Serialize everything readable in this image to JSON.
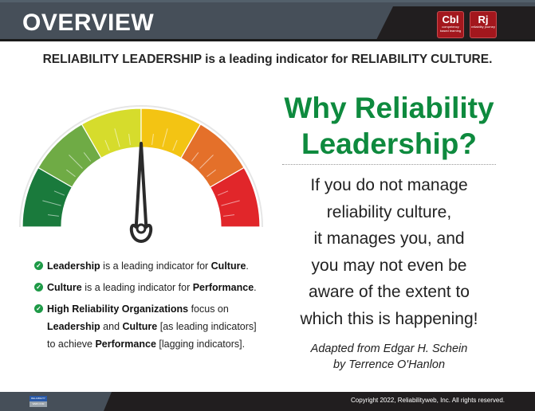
{
  "header": {
    "title": "OVERVIEW",
    "badges": [
      {
        "big": "Cbl",
        "small": "competency based learning"
      },
      {
        "big": "Rj",
        "small": "reliability journey"
      }
    ]
  },
  "subtitle": "RELIABILITY LEADERSHIP is a leading indicator for RELIABILITY CULTURE.",
  "gauge": {
    "needle_value": 0.5,
    "segment_colors": [
      "#1a7a3c",
      "#6fab45",
      "#d6dc2c",
      "#f3c413",
      "#e4702a",
      "#e1262a"
    ],
    "needle_color": "#2b2b2b"
  },
  "bullets": [
    {
      "parts": [
        {
          "t": "Leadership",
          "b": true
        },
        {
          "t": " is a leading indicator for ",
          "b": false
        },
        {
          "t": "Culture",
          "b": true
        },
        {
          "t": ".",
          "b": false
        }
      ]
    },
    {
      "parts": [
        {
          "t": "Culture",
          "b": true
        },
        {
          "t": " is a leading indicator for ",
          "b": false
        },
        {
          "t": "Performance",
          "b": true
        },
        {
          "t": ".",
          "b": false
        }
      ]
    },
    {
      "parts": [
        {
          "t": "High Reliability Organizations",
          "b": true
        },
        {
          "t": " focus on ",
          "b": false
        },
        {
          "t": "Leadership",
          "b": true
        },
        {
          "t": " and ",
          "b": false
        },
        {
          "t": "Culture",
          "b": true
        },
        {
          "t": " [as leading indicators] to achieve ",
          "b": false
        },
        {
          "t": "Performance",
          "b": true
        },
        {
          "t": " [lagging indicators].",
          "b": false
        }
      ]
    }
  ],
  "right": {
    "heading_line1": "Why Reliability",
    "heading_line2": "Leadership?",
    "heading_color": "#0e8a3e",
    "quote_lines": [
      "If you do not manage",
      "reliability culture,",
      "it manages you, and",
      "you may not even be",
      "aware of the extent to",
      "which this is happening!"
    ],
    "attribution_line1": "Adapted from Edgar H. Schein",
    "attribution_line2": "by Terrence O'Hanlon"
  },
  "footer": {
    "logo_top": "RELIABILITY",
    "logo_bottom": "WEB.COM",
    "copyright": "Copyright 2022, Reliabilityweb, Inc. All rights reserved."
  }
}
